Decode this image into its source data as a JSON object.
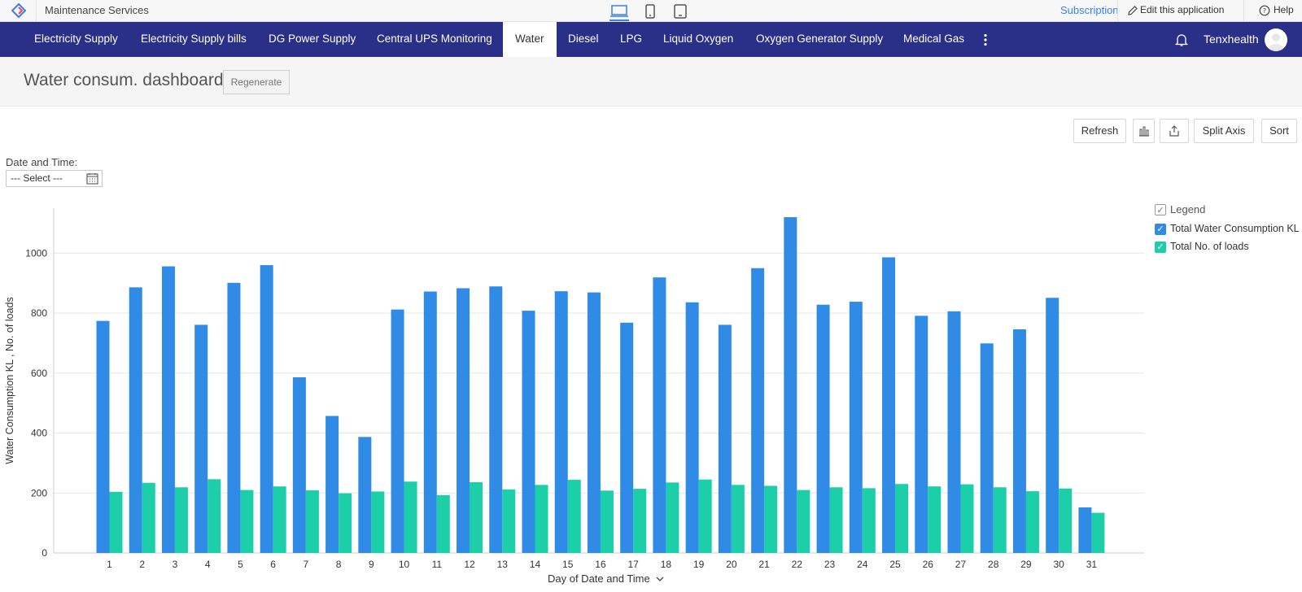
{
  "topbar": {
    "app_title": "Maintenance Services",
    "subscription": "Subscription",
    "edit_app": "Edit this application",
    "help": "Help"
  },
  "nav": {
    "tabs": [
      {
        "label": "Electricity Supply"
      },
      {
        "label": "Electricity Supply bills"
      },
      {
        "label": "DG Power Supply"
      },
      {
        "label": "Central UPS Monitoring"
      },
      {
        "label": "Water",
        "active": true
      },
      {
        "label": "Diesel"
      },
      {
        "label": "LPG"
      },
      {
        "label": "Liquid Oxygen"
      },
      {
        "label": "Oxygen Generator Supply"
      },
      {
        "label": "Medical Gas"
      }
    ],
    "user_name": "Tenxhealth"
  },
  "page": {
    "title": "Water consum. dashboard",
    "regenerate": "Regenerate"
  },
  "toolbar": {
    "refresh": "Refresh",
    "split_axis": "Split Axis",
    "sort": "Sort"
  },
  "filter": {
    "label": "Date and Time:",
    "select_value": "--- Select ---"
  },
  "legend": {
    "title": "Legend"
  },
  "colors": {
    "nav_bg": "#2a2f87",
    "series_water": "#2f8be6",
    "series_loads": "#1ccfa9",
    "accent": "#3a7ee6"
  },
  "chart_data": {
    "type": "bar",
    "xlabel": "Day of Date and Time",
    "ylabel": "Water Consumption KL , No. of loads",
    "ylim": [
      0,
      1150
    ],
    "yticks": [
      0,
      200,
      400,
      600,
      800,
      1000
    ],
    "grid": true,
    "legend_position": "top-right",
    "categories": [
      "1",
      "2",
      "3",
      "4",
      "5",
      "6",
      "7",
      "8",
      "9",
      "10",
      "11",
      "12",
      "13",
      "14",
      "15",
      "16",
      "17",
      "18",
      "19",
      "20",
      "21",
      "22",
      "23",
      "24",
      "25",
      "26",
      "27",
      "28",
      "29",
      "30",
      "31"
    ],
    "series": [
      {
        "name": "Total Water Consumption KL",
        "color": "#2f8be6",
        "values": [
          774,
          886,
          956,
          761,
          901,
          960,
          586,
          457,
          387,
          812,
          872,
          883,
          889,
          808,
          873,
          869,
          768,
          919,
          836,
          761,
          950,
          1120,
          828,
          838,
          986,
          791,
          806,
          699,
          746,
          851,
          152
        ]
      },
      {
        "name": "Total No. of loads",
        "color": "#1ccfa9",
        "values": [
          204,
          234,
          219,
          246,
          210,
          222,
          209,
          199,
          205,
          238,
          193,
          236,
          212,
          227,
          244,
          208,
          214,
          235,
          245,
          227,
          224,
          210,
          219,
          216,
          230,
          222,
          229,
          219,
          206,
          215,
          134
        ]
      }
    ]
  }
}
